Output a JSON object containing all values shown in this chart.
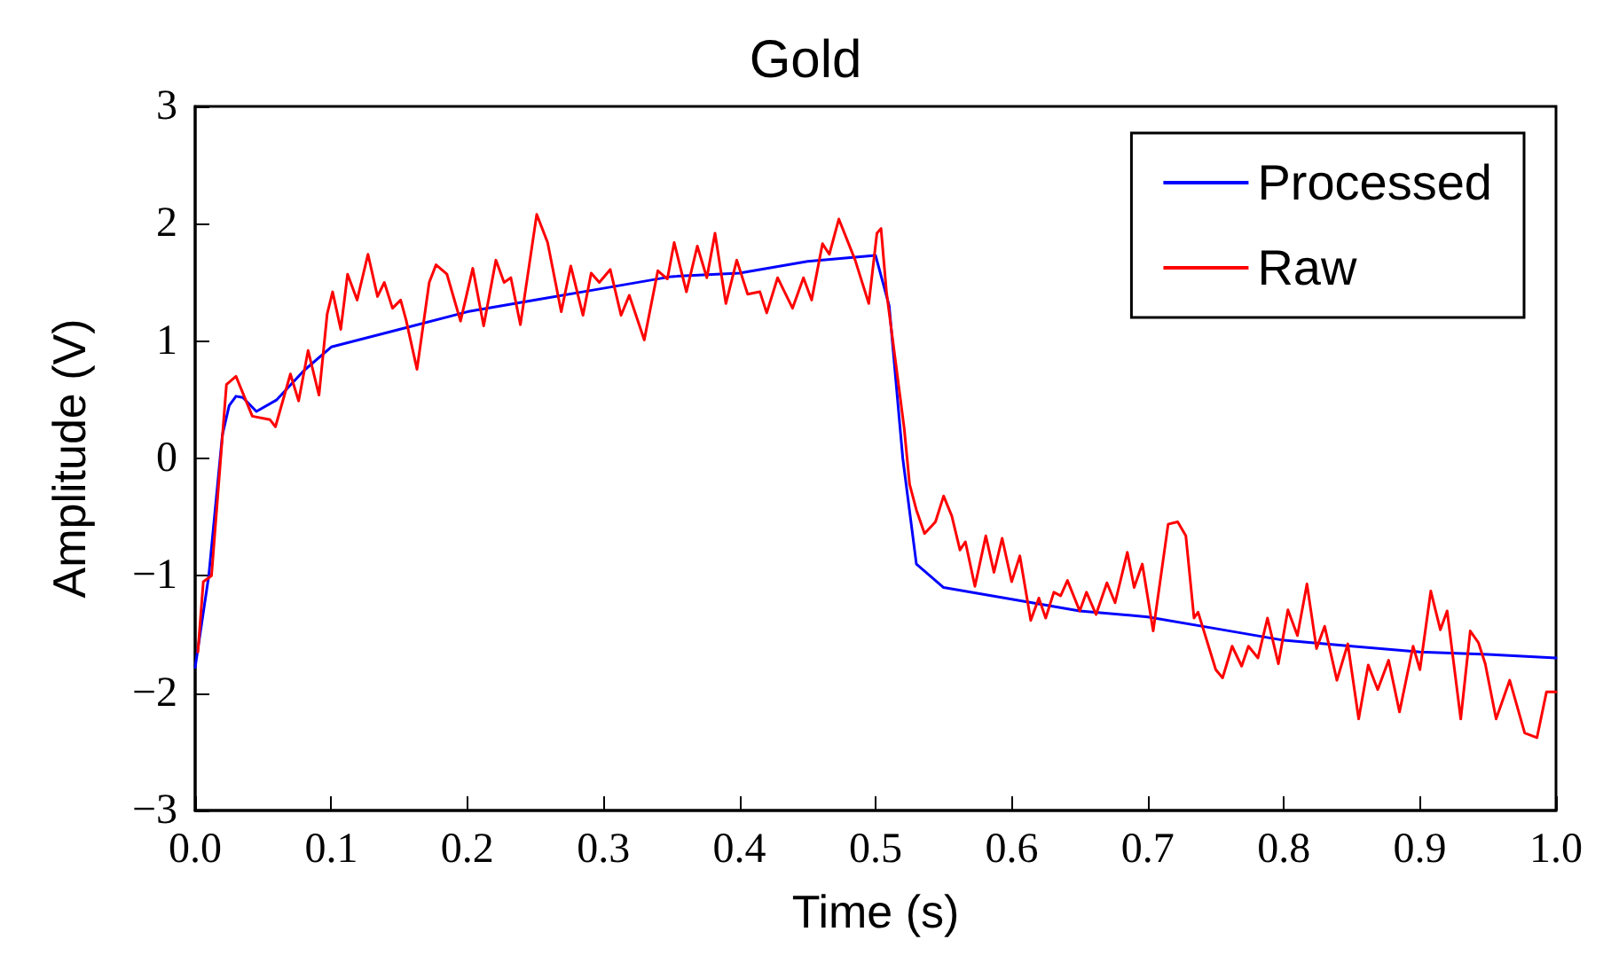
{
  "chart_data": {
    "type": "line",
    "title": "Gold",
    "xlabel": "Time (s)",
    "ylabel": "Amplitude (V)",
    "xlim": [
      0,
      1
    ],
    "xticks": [
      {
        "value": 0,
        "label": "0.0"
      },
      {
        "value": 0.1,
        "label": "0.1"
      },
      {
        "value": 0.2,
        "label": "0.2"
      },
      {
        "value": 0.3,
        "label": "0.3"
      },
      {
        "value": 0.4,
        "label": "0.4"
      },
      {
        "value": 0.5,
        "label": "0.5"
      },
      {
        "value": 0.6,
        "label": "0.6"
      },
      {
        "value": 0.7,
        "label": "0.7"
      },
      {
        "value": 0.8,
        "label": "0.8"
      },
      {
        "value": 0.9,
        "label": "0.9"
      },
      {
        "value": 1,
        "label": "1.0"
      }
    ],
    "ylim": [
      -3,
      3
    ],
    "yticks": [
      {
        "value": -3,
        "label": "−3"
      },
      {
        "value": -2,
        "label": "−2"
      },
      {
        "value": -1,
        "label": "−1"
      },
      0,
      1,
      2,
      3
    ],
    "grid": false,
    "legend": "top right",
    "marker": "none",
    "line_style": "solid",
    "series": [
      {
        "name": "Processed",
        "color": "#0000ff",
        "x": [
          0,
          0.01,
          0.02,
          0.025,
          0.03,
          0.035,
          0.045,
          0.06,
          0.08,
          0.1,
          0.15,
          0.2,
          0.25,
          0.3,
          0.35,
          0.4,
          0.45,
          0.5,
          0.51,
          0.52,
          0.53,
          0.55,
          0.6,
          0.65,
          0.7,
          0.75,
          0.8,
          0.85,
          0.9,
          0.95,
          1
        ],
        "values": [
          -1.78,
          -1.0,
          0.2,
          0.45,
          0.53,
          0.52,
          0.4,
          0.5,
          0.75,
          0.95,
          1.1,
          1.25,
          1.35,
          1.45,
          1.55,
          1.58,
          1.68,
          1.73,
          1.3,
          0,
          -0.9,
          -1.1,
          -1.2,
          -1.3,
          -1.35,
          -1.45,
          -1.55,
          -1.6,
          -1.65,
          -1.67,
          -1.7
        ]
      },
      {
        "name": "Raw",
        "color": "#ff0000",
        "x": [
          0.002,
          0.006,
          0.012,
          0.023,
          0.03,
          0.042,
          0.055,
          0.059,
          0.07,
          0.076,
          0.083,
          0.091,
          0.097,
          0.101,
          0.107,
          0.112,
          0.119,
          0.127,
          0.134,
          0.139,
          0.145,
          0.151,
          0.155,
          0.163,
          0.172,
          0.177,
          0.185,
          0.195,
          0.204,
          0.212,
          0.221,
          0.227,
          0.232,
          0.239,
          0.251,
          0.259,
          0.269,
          0.276,
          0.285,
          0.291,
          0.297,
          0.305,
          0.313,
          0.319,
          0.33,
          0.34,
          0.347,
          0.352,
          0.361,
          0.369,
          0.376,
          0.382,
          0.39,
          0.398,
          0.406,
          0.415,
          0.42,
          0.428,
          0.439,
          0.447,
          0.453,
          0.461,
          0.466,
          0.473,
          0.485,
          0.495,
          0.501,
          0.504,
          0.508,
          0.521,
          0.525,
          0.53,
          0.536,
          0.544,
          0.55,
          0.556,
          0.562,
          0.566,
          0.573,
          0.581,
          0.587,
          0.593,
          0.6,
          0.606,
          0.614,
          0.62,
          0.625,
          0.631,
          0.636,
          0.641,
          0.65,
          0.655,
          0.662,
          0.67,
          0.676,
          0.685,
          0.69,
          0.696,
          0.704,
          0.715,
          0.722,
          0.728,
          0.734,
          0.737,
          0.75,
          0.755,
          0.762,
          0.769,
          0.774,
          0.781,
          0.788,
          0.796,
          0.803,
          0.81,
          0.817,
          0.824,
          0.83,
          0.839,
          0.847,
          0.855,
          0.862,
          0.869,
          0.877,
          0.885,
          0.895,
          0.9,
          0.908,
          0.915,
          0.92,
          0.93,
          0.937,
          0.943,
          0.948,
          0.956,
          0.966,
          0.977,
          0.986,
          0.993,
          1
        ],
        "values": [
          -1.65,
          -1.05,
          -1.0,
          0.63,
          0.7,
          0.36,
          0.33,
          0.27,
          0.72,
          0.49,
          0.92,
          0.54,
          1.23,
          1.42,
          1.1,
          1.57,
          1.35,
          1.74,
          1.38,
          1.5,
          1.28,
          1.35,
          1.18,
          0.76,
          1.5,
          1.65,
          1.57,
          1.17,
          1.62,
          1.13,
          1.69,
          1.5,
          1.54,
          1.14,
          2.08,
          1.84,
          1.25,
          1.64,
          1.22,
          1.58,
          1.5,
          1.61,
          1.22,
          1.39,
          1.01,
          1.6,
          1.53,
          1.84,
          1.42,
          1.81,
          1.54,
          1.92,
          1.32,
          1.69,
          1.4,
          1.42,
          1.24,
          1.54,
          1.28,
          1.54,
          1.35,
          1.83,
          1.74,
          2.04,
          1.69,
          1.32,
          1.92,
          1.96,
          1.42,
          0.26,
          -0.22,
          -0.44,
          -0.64,
          -0.54,
          -0.32,
          -0.49,
          -0.78,
          -0.71,
          -1.09,
          -0.66,
          -0.97,
          -0.68,
          -1.05,
          -0.83,
          -1.38,
          -1.19,
          -1.36,
          -1.14,
          -1.17,
          -1.04,
          -1.3,
          -1.14,
          -1.33,
          -1.06,
          -1.23,
          -0.8,
          -1.1,
          -0.9,
          -1.47,
          -0.56,
          -0.54,
          -0.66,
          -1.36,
          -1.31,
          -1.8,
          -1.87,
          -1.6,
          -1.77,
          -1.6,
          -1.7,
          -1.36,
          -1.75,
          -1.29,
          -1.51,
          -1.07,
          -1.62,
          -1.43,
          -1.89,
          -1.58,
          -2.22,
          -1.76,
          -1.97,
          -1.72,
          -2.16,
          -1.6,
          -1.8,
          -1.13,
          -1.46,
          -1.3,
          -2.22,
          -1.47,
          -1.57,
          -1.75,
          -2.22,
          -1.89,
          -2.34,
          -2.38,
          -1.99,
          -1.99
        ]
      }
    ]
  }
}
